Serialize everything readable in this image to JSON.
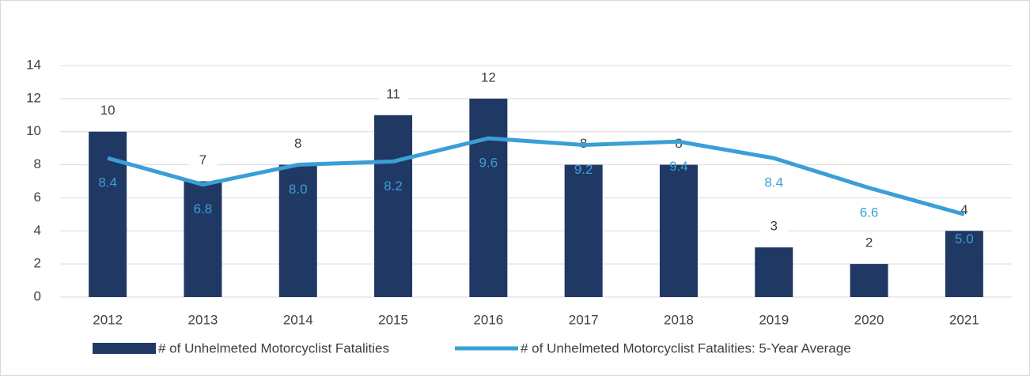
{
  "chart_data": {
    "type": "bar_line",
    "categories": [
      "2012",
      "2013",
      "2014",
      "2015",
      "2016",
      "2017",
      "2018",
      "2019",
      "2020",
      "2021"
    ],
    "series": [
      {
        "name": "# of Unhelmeted Motorcyclist Fatalities",
        "type": "bar",
        "color": "#203864",
        "values": [
          10,
          7,
          8,
          11,
          12,
          8,
          8,
          3,
          2,
          4
        ]
      },
      {
        "name": "# of Unhelmeted Motorcyclist Fatalities: 5-Year Average",
        "type": "line",
        "color": "#3a9fd6",
        "values": [
          8.4,
          6.8,
          8.0,
          8.2,
          9.6,
          9.2,
          9.4,
          8.4,
          6.6,
          5.0
        ],
        "value_labels": [
          "8.4",
          "6.8",
          "8.0",
          "8.2",
          "9.6",
          "9.2",
          "9.4",
          "8.4",
          "6.6",
          "5.0"
        ]
      }
    ],
    "ylim": [
      0,
      14
    ],
    "yticks": [
      0,
      2,
      4,
      6,
      8,
      10,
      12,
      14
    ],
    "grid": true,
    "legend": "bottom"
  }
}
